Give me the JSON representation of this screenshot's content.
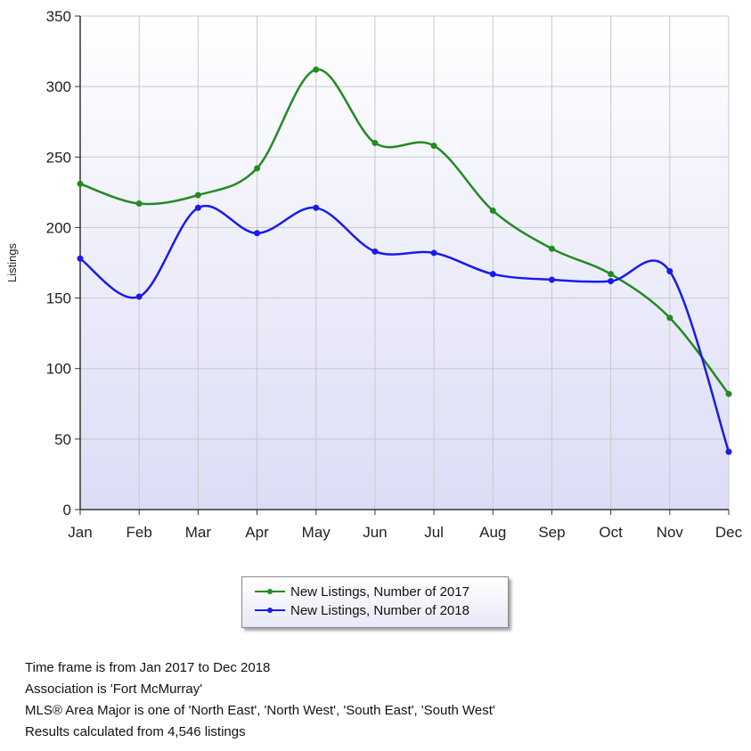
{
  "chart_data": {
    "type": "line",
    "categories": [
      "Jan",
      "Feb",
      "Mar",
      "Apr",
      "May",
      "Jun",
      "Jul",
      "Aug",
      "Sep",
      "Oct",
      "Nov",
      "Dec"
    ],
    "series": [
      {
        "name": "New Listings, Number of 2017",
        "color": "#228b22",
        "values": [
          231,
          217,
          223,
          242,
          312,
          260,
          258,
          212,
          185,
          167,
          136,
          82
        ]
      },
      {
        "name": "New Listings, Number of 2018",
        "color": "#1a1aee",
        "values": [
          178,
          151,
          214,
          196,
          214,
          183,
          182,
          167,
          163,
          162,
          169,
          41
        ]
      }
    ],
    "ylabel": "Listings",
    "yticks": [
      0,
      50,
      100,
      150,
      200,
      250,
      300,
      350
    ],
    "ylim": [
      0,
      350
    ],
    "grid": true,
    "legend_position": "bottom-center"
  },
  "footer": {
    "line1": "Time frame is from Jan 2017 to Dec 2018",
    "line2": "Association is 'Fort McMurray'",
    "line3": "MLS® Area Major is one of 'North East', 'North West', 'South East', 'South West'",
    "line4": "Results calculated from 4,546 listings"
  }
}
